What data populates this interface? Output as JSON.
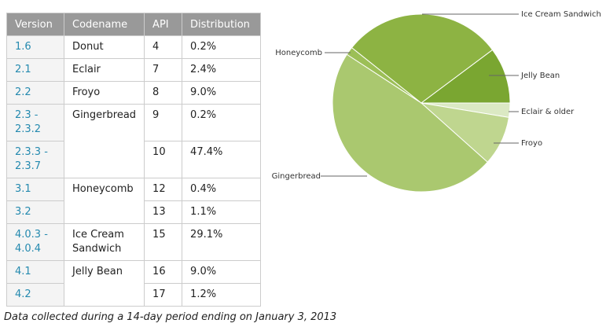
{
  "table": {
    "header": [
      "Version",
      "Codename",
      "API",
      "Distribution"
    ],
    "rows": [
      [
        "1.6",
        "Donut",
        "4",
        "0.2%"
      ],
      [
        "2.1",
        "Eclair",
        "7",
        "2.4%"
      ],
      [
        "2.2",
        "Froyo",
        "8",
        "9.0%"
      ],
      [
        "2.3 - 2.3.2",
        "Gingerbread",
        "9",
        "0.2%"
      ],
      [
        "2.3.3 - 2.3.7",
        "10",
        "47.4%"
      ],
      [
        "3.1",
        "Honeycomb",
        "12",
        "0.4%"
      ],
      [
        "3.2",
        "13",
        "1.1%"
      ],
      [
        "4.0.3 - 4.0.4",
        "Ice Cream Sandwich",
        "15",
        "29.1%"
      ],
      [
        "4.1",
        "Jelly Bean",
        "16",
        "9.0%"
      ],
      [
        "4.2",
        "17",
        "1.2%"
      ]
    ]
  },
  "footnote": "Data collected during a 14-day period ending on January 3, 2013",
  "chart_data": {
    "type": "pie",
    "categories": [
      "Eclair & older",
      "Froyo",
      "Gingerbread",
      "Honeycomb",
      "Ice Cream Sandwich",
      "Jelly Bean"
    ],
    "values": [
      2.6,
      9.0,
      47.6,
      1.5,
      29.1,
      10.2
    ],
    "colors": [
      "#dbe9c3",
      "#bfd68f",
      "#aac86f",
      "#9cbf57",
      "#8db343",
      "#7aa631"
    ]
  }
}
